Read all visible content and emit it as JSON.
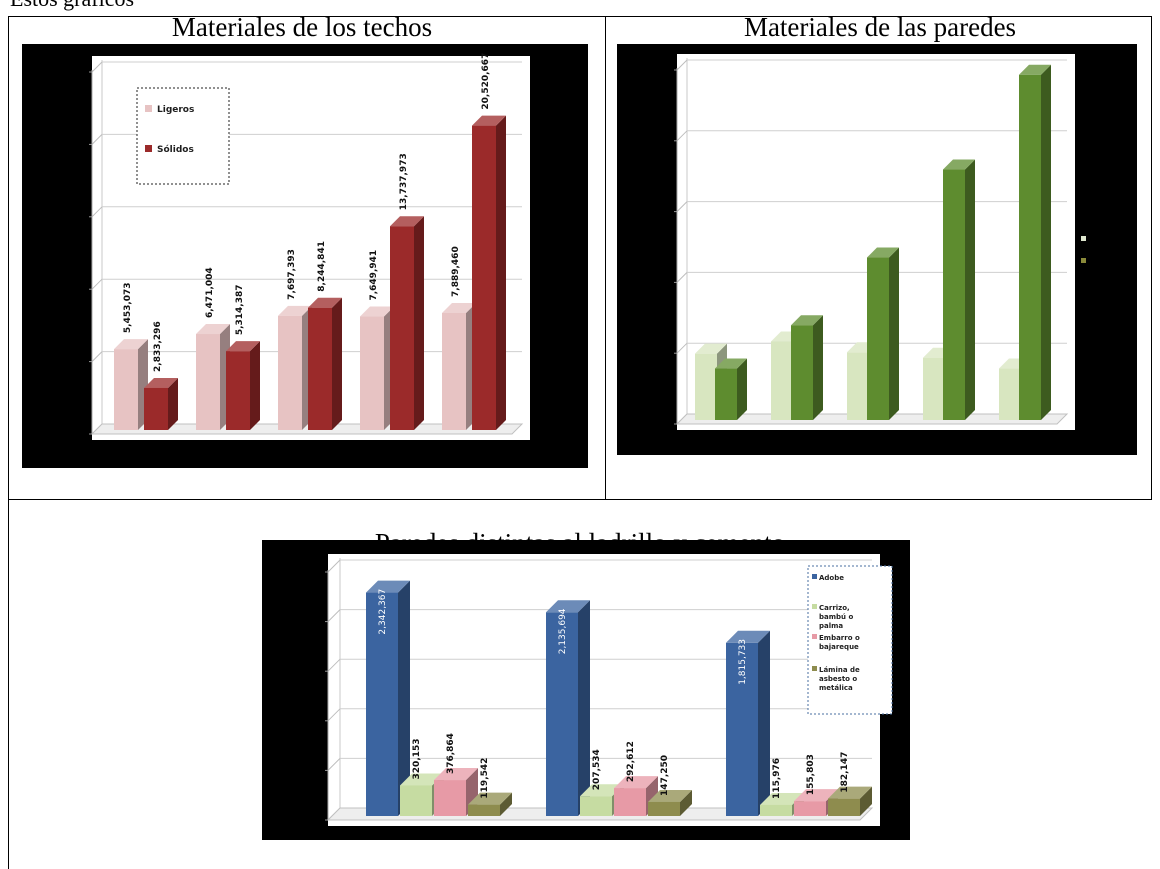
{
  "page": {
    "fragment_text": "Estos gráficos"
  },
  "chart_data": [
    {
      "type": "bar",
      "title": "Materiales de los techos",
      "categories": [
        "",
        "",
        "",
        "",
        ""
      ],
      "series": [
        {
          "name": "Ligeros",
          "values": [
            5453073,
            6471004,
            7697393,
            7649941,
            7889460
          ],
          "labels": [
            "5,453,073",
            "6,471,004",
            "7,697,393",
            "7,649,941",
            "7,889,460"
          ],
          "color": "#e7c3c3"
        },
        {
          "name": "Sólidos",
          "values": [
            2833296,
            5314387,
            8244841,
            13737973,
            20520667
          ],
          "labels": [
            "2,833,296",
            "5,314,387",
            "8,244,841",
            "13,737,973",
            "20,520,667"
          ],
          "color": "#9b2a2a"
        }
      ],
      "ylim": [
        0,
        24000000
      ],
      "legend": "top-left",
      "grid": true
    },
    {
      "type": "bar",
      "title": "Materiales de las paredes",
      "categories": [
        "",
        "",
        "",
        "",
        ""
      ],
      "series": [
        {
          "values": [
            4900000,
            5800000,
            5000000,
            4600000,
            3800000
          ],
          "color": "#d8e6c0"
        },
        {
          "values": [
            3800000,
            7000000,
            12000000,
            18500000,
            25500000
          ],
          "color": "#5e8c2f"
        }
      ],
      "ylim": [
        0,
        26000000
      ],
      "grid": true
    },
    {
      "type": "bar",
      "title": "Paredes distintas al ladrillo y cemento",
      "categories": [
        "",
        "",
        ""
      ],
      "series": [
        {
          "name": "Adobe",
          "values": [
            2342367,
            2135694,
            1815733
          ],
          "labels": [
            "2,342,367",
            "2,135,694",
            "1,815,733"
          ],
          "color": "#3b64a0"
        },
        {
          "name": "Carrizo, bambú o palma",
          "values": [
            320153,
            207534,
            115976
          ],
          "labels": [
            "320,153",
            "207,534",
            "115,976"
          ],
          "color": "#c6dca2"
        },
        {
          "name": "Embarro o bajareque",
          "values": [
            376864,
            292612,
            155803
          ],
          "labels": [
            "376,864",
            "292,612",
            "155,803"
          ],
          "color": "#e79aa6"
        },
        {
          "name": "Lámina de asbesto o metálica",
          "values": [
            119542,
            147250,
            182147
          ],
          "labels": [
            "119,542",
            "147,250",
            "182,147"
          ],
          "color": "#8e8c4e"
        }
      ],
      "ylim": [
        0,
        2600000
      ],
      "legend": "top-right",
      "grid": true
    }
  ]
}
